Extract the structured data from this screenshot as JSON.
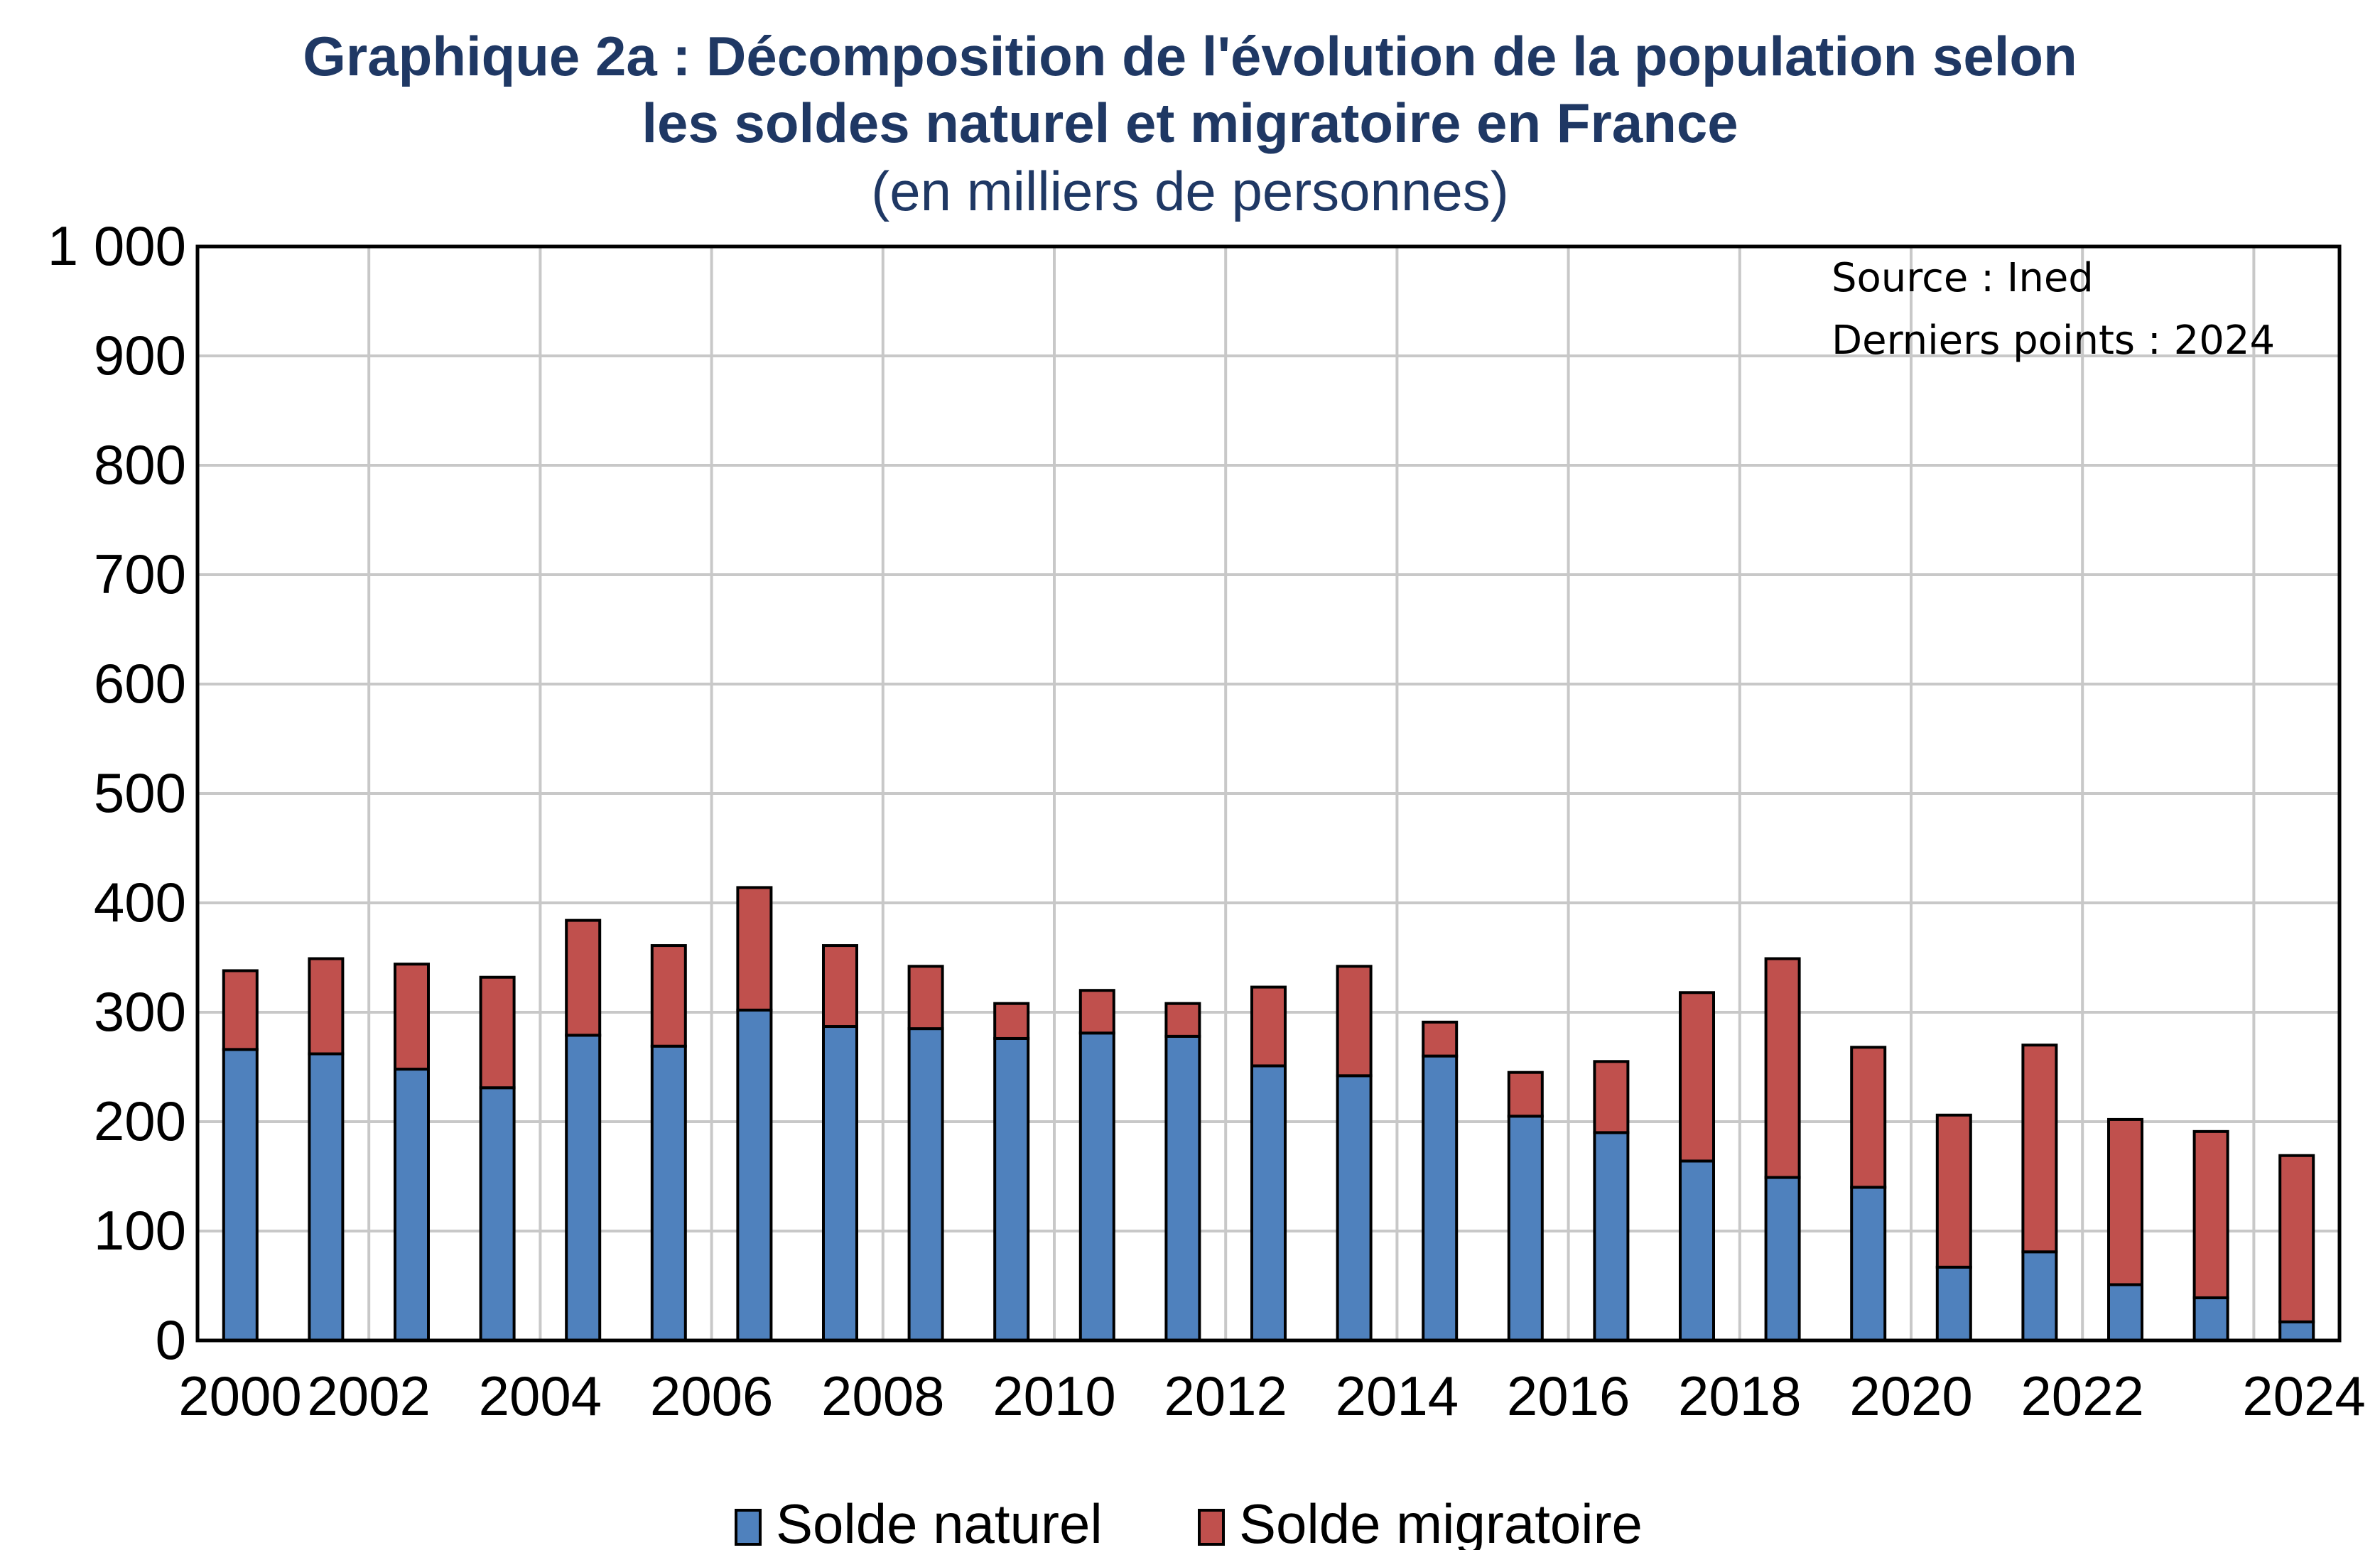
{
  "chart_data": {
    "type": "bar",
    "stacked": true,
    "title_line1": "Graphique 2a : Décomposition de l'évolution de la population selon",
    "title_line2": "les soldes naturel et migratoire en France",
    "subtitle": "(en milliers de personnes)",
    "source_note": "Source  : Ined",
    "last_points_note": "Derniers points : 2024",
    "ylim": [
      0,
      1000
    ],
    "yticks": [
      0,
      100,
      200,
      300,
      400,
      500,
      600,
      700,
      800,
      900,
      1000
    ],
    "ytick_labels": [
      "0",
      "100",
      "200",
      "300",
      "400",
      "500",
      "600",
      "700",
      "800",
      "900",
      "1 000"
    ],
    "categories": [
      "2000",
      "2001",
      "2002",
      "2003",
      "2004",
      "2005",
      "2006",
      "2007",
      "2008",
      "2009",
      "2010",
      "2011",
      "2012",
      "2013",
      "2014",
      "2015",
      "2016",
      "2017",
      "2018",
      "2019",
      "2020",
      "2021",
      "2022",
      "2023",
      "2024"
    ],
    "xtick_labels": [
      "2000",
      "2002",
      "2004",
      "2006",
      "2008",
      "2010",
      "2012",
      "2014",
      "2016",
      "2018",
      "2020",
      "2022",
      "2024"
    ],
    "grid": true,
    "legend_position": "bottom",
    "series": [
      {
        "name": "Solde naturel",
        "color": "#4f81bd",
        "values": [
          266,
          262,
          248,
          231,
          279,
          269,
          302,
          287,
          285,
          276,
          281,
          278,
          251,
          242,
          260,
          205,
          190,
          164,
          149,
          140,
          67,
          81,
          51,
          39,
          17
        ]
      },
      {
        "name": "Solde migratoire",
        "color": "#c0504d",
        "values": [
          72,
          87,
          96,
          101,
          105,
          92,
          112,
          74,
          57,
          32,
          39,
          30,
          72,
          100,
          31,
          40,
          65,
          154,
          200,
          128,
          139,
          189,
          151,
          152,
          152
        ]
      }
    ]
  }
}
